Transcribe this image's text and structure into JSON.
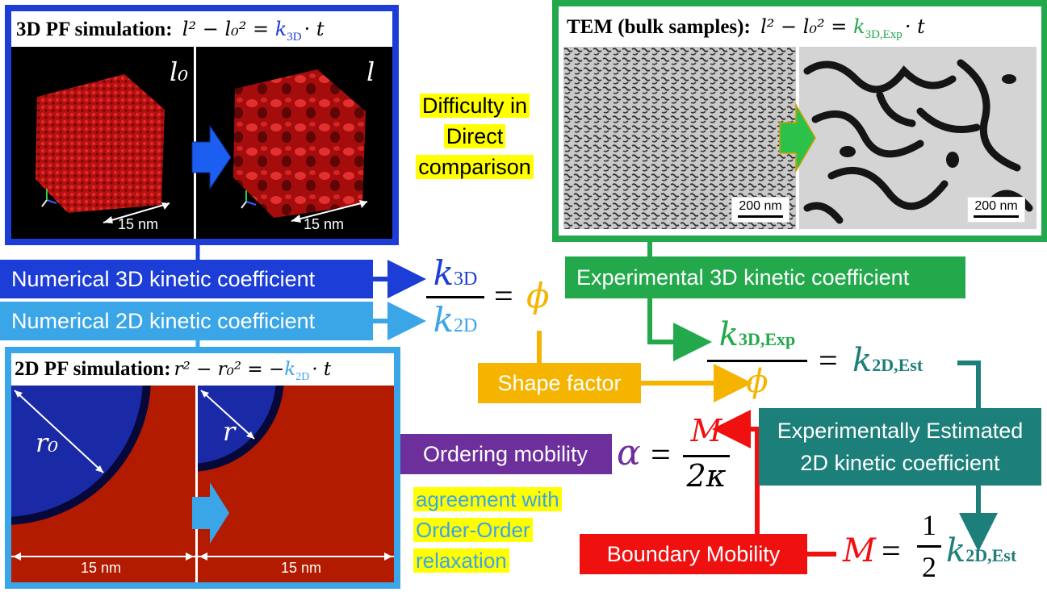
{
  "colors": {
    "blue": "#1c3ed6",
    "light_blue": "#3aa5e7",
    "green": "#23a94b",
    "teal": "#1d7f7a",
    "orange": "#f5b400",
    "purple": "#6d2f9b",
    "red": "#ef1010",
    "highlight": "#ffff00"
  },
  "panel_3d": {
    "title": "3D PF simulation:",
    "eq_lhs": "l² − l₀² = ",
    "eq_k": "k",
    "eq_k_sub": "3D",
    "eq_tail": "· t",
    "left_label": "l₀",
    "right_label": "l",
    "left_scale": "15 nm",
    "right_scale": "15 nm"
  },
  "panel_tem": {
    "title": "TEM (bulk samples):",
    "eq_lhs": "l² − l₀² = ",
    "eq_k": "k",
    "eq_k_sub": "3D,Exp",
    "eq_tail": "· t",
    "left_scale": "200 nm",
    "right_scale": "200 nm"
  },
  "panel_2d": {
    "title": "2D PF simulation:",
    "eq_lhs": "r² − r₀² = −",
    "eq_k": "k",
    "eq_k_sub": "2D",
    "eq_tail": "· t",
    "left_label": "r₀",
    "right_label": "r",
    "left_scale": "15 nm",
    "right_scale": "15 nm"
  },
  "difficulty": [
    "Difficulty in",
    "Direct",
    "comparison"
  ],
  "labels": {
    "num_3d": "Numerical 3D kinetic coefficient",
    "num_2d": "Numerical 2D kinetic coefficient",
    "exp_3d": "Experimental 3D kinetic coefficient",
    "shape_factor": "Shape factor",
    "ordering_mobility": "Ordering mobility",
    "exp_est_line1": "Experimentally Estimated",
    "exp_est_line2": "2D kinetic coefficient",
    "boundary_mobility": "Boundary Mobility"
  },
  "agreement": [
    "agreement with",
    "Order-Order",
    "relaxation"
  ],
  "formulas": {
    "k": "k",
    "sub_3d": "3D",
    "sub_2d": "2D",
    "phi": "ϕ",
    "equals": "=",
    "sub_3d_exp": "3D,Exp",
    "sub_2d_est": "2D,Est",
    "alpha": "α",
    "M": "M",
    "two_kappa": "2κ",
    "one": "1",
    "two": "2"
  }
}
